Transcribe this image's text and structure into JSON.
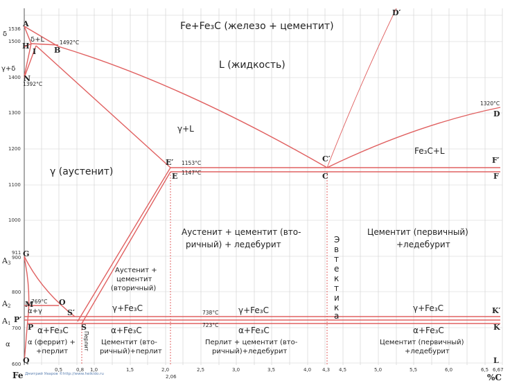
{
  "axis": {
    "y_ticks": [
      "1536",
      "1500",
      "1400",
      "1300",
      "1200",
      "1100",
      "1000",
      "911",
      "900",
      "800",
      "700",
      "600"
    ],
    "x_ticks": [
      "0,5",
      "0,8",
      "1,0",
      "1,5",
      "2,0",
      "2,06",
      "2,5",
      "3,0",
      "3,5",
      "4,0",
      "4,3",
      "4,5",
      "5,0",
      "5,5",
      "6,0",
      "6,5",
      "6,67"
    ],
    "origin_label": "Fe",
    "x_unit": "%C",
    "critical_lines": [
      "A3",
      "A2",
      "A1"
    ]
  },
  "points": {
    "A": "A",
    "H": "H",
    "I": "I",
    "B": "B",
    "N": "N",
    "G": "G",
    "M": "M",
    "O": "O",
    "P_prime": "P′",
    "P": "P",
    "Q": "Q",
    "S_prime": "S′",
    "S": "S",
    "E_prime": "E′",
    "E": "E",
    "C_prime": "C′",
    "C": "C",
    "D": "D",
    "D_prime": "D′",
    "F_prime": "F′",
    "F": "F",
    "K_prime": "K′",
    "K": "K",
    "L": "L"
  },
  "temps": {
    "t1492": "1492°C",
    "t1392": "1392°C",
    "t1153": "1153°C",
    "t1147": "1147°C",
    "t769": "769°C",
    "t738": "738°C",
    "t723": "723°C",
    "t1320": "1320°C"
  },
  "phases": {
    "delta": "δ",
    "delta_L": "δ+L",
    "gamma_delta": "γ+δ",
    "alpha": "α",
    "alpha_gamma": "α+γ",
    "top": "Fe+Fe₃C (железо + цементит)",
    "liquid": "L (жидкость)",
    "gamma_L": "γ+L",
    "austenite": "γ (аустенит)",
    "fe3c_L": "Fe₃C+L",
    "aust_cem_led_1": "Аустенит + цементит (вто-",
    "aust_cem_led_2": "ричный) + ледебурит",
    "cem_primary_led_1": "Цементит (первичный)",
    "cem_primary_led_2": "+ледебурит",
    "eutectic": [
      "Э",
      "в",
      "т",
      "е",
      "к",
      "т",
      "и",
      "к",
      "а"
    ],
    "aust_cem_sec_1": "Аустенит +",
    "aust_cem_sec_2": "цементит",
    "aust_cem_sec_3": "(вторичный)",
    "g_fe3c_1": "γ+Fe₃C",
    "g_fe3c_2": "γ+Fe₃C",
    "g_fe3c_3": "γ+Fe₃C",
    "a_fe3c_1": "α+Fe₃C",
    "a_fe3c_2": "α+Fe₃C",
    "a_fe3c_3": "α+Fe₃C",
    "a_fe3c_4": "α+Fe₃C",
    "ferrite_1": "α (феррит) +",
    "ferrite_2": "+перлит",
    "perlite_vert": "Перлит",
    "cem_sec_perl_1": "Цементит (вто-",
    "cem_sec_perl_2": "ричный)+перлит",
    "perl_cem_led_1": "Перлит + цементит (вто-",
    "perl_cem_led_2": "ричный)+ледебурит",
    "cem_prim_led_low_1": "Цементит (первичный)",
    "cem_prim_led_low_2": "+ледебурит"
  },
  "credit": "Дмитрий Уваров ©http://www.heikido.ru"
}
